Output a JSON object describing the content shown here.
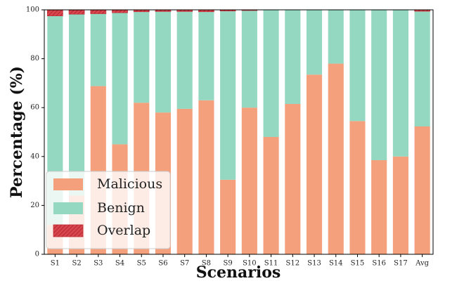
{
  "chart_data": {
    "type": "bar",
    "stacked": true,
    "title": "",
    "xlabel": "Scenarios",
    "ylabel": "Percentage (%)",
    "ylim": [
      0,
      100
    ],
    "yticks": [
      0,
      20,
      40,
      60,
      80,
      100
    ],
    "grid": false,
    "legend_position": "bottom-left",
    "categories": [
      "S1",
      "S2",
      "S3",
      "S4",
      "S5",
      "S6",
      "S7",
      "S8",
      "S9",
      "S10",
      "S11",
      "S12",
      "S13",
      "S14",
      "S15",
      "S16",
      "S17",
      "Avg"
    ],
    "series": [
      {
        "name": "Malicious",
        "color": "#f4a07c",
        "values": [
          12,
          24,
          68.8,
          45,
          62,
          58,
          59.5,
          63,
          30.5,
          60,
          48,
          61.5,
          73.5,
          78,
          54.5,
          38.5,
          40,
          52.3
        ]
      },
      {
        "name": "Benign",
        "color": "#94d8c2",
        "values": [
          85.5,
          74.2,
          29.6,
          53.8,
          37.2,
          41.3,
          39.8,
          36.2,
          69,
          39.7,
          52,
          38.5,
          26.5,
          22,
          45.5,
          61.5,
          60,
          47.1
        ]
      },
      {
        "name": "Overlap",
        "color": "#d9454d",
        "hatched": true,
        "values": [
          2.5,
          1.8,
          1.6,
          1.2,
          0.8,
          0.7,
          0.7,
          0.8,
          0.5,
          0.3,
          0,
          0,
          0,
          0,
          0,
          0,
          0,
          0.6
        ]
      }
    ]
  }
}
